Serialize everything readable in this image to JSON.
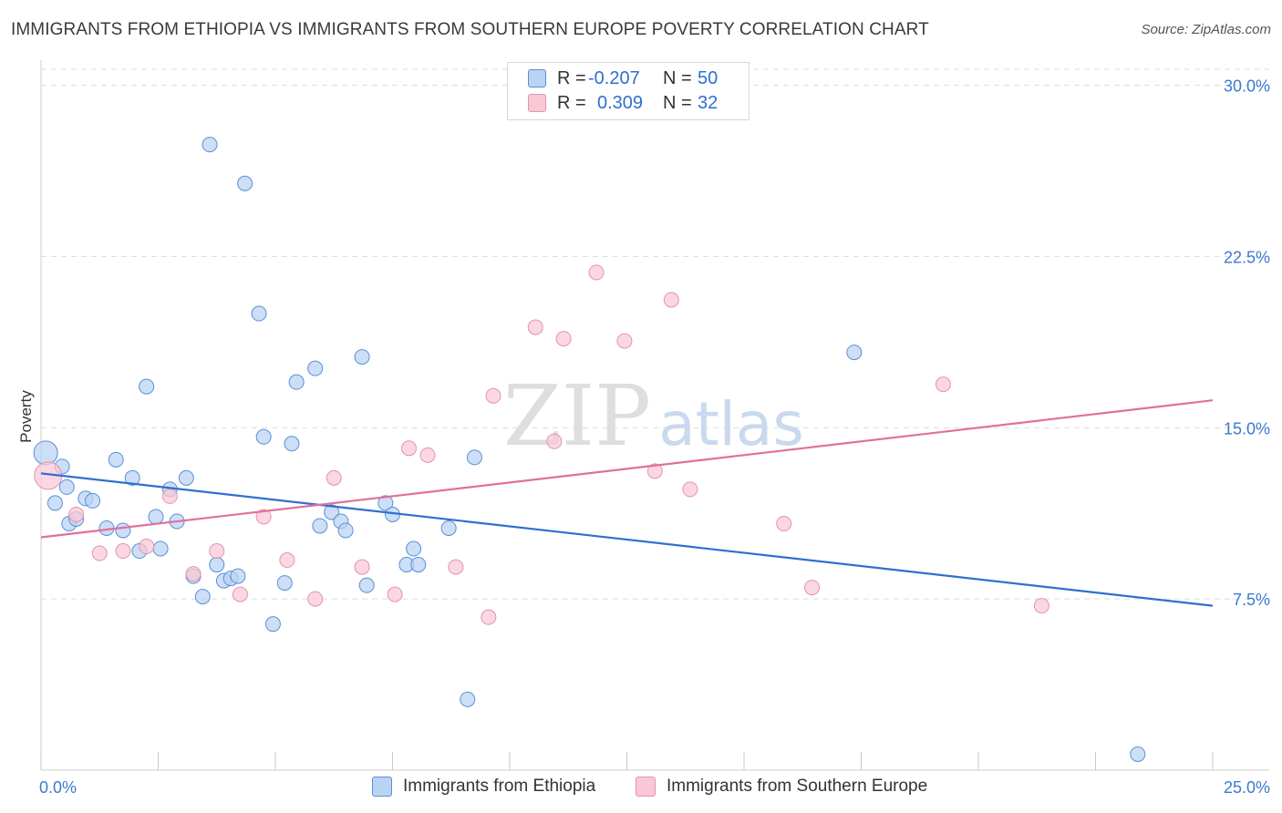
{
  "title": "IMMIGRANTS FROM ETHIOPIA VS IMMIGRANTS FROM SOUTHERN EUROPE POVERTY CORRELATION CHART",
  "source": "Source: ZipAtlas.com",
  "watermark": {
    "zip": "ZIP",
    "atlas": "atlas"
  },
  "legend_top": [
    {
      "r_label": "R =",
      "r_value": "-0.207",
      "n_label": "N =",
      "n_value": "50"
    },
    {
      "r_label": "R =",
      "r_value": "0.309",
      "n_label": "N =",
      "n_value": "32"
    }
  ],
  "legend_bottom": [
    "Immigrants from Ethiopia",
    "Immigrants from Southern Europe"
  ],
  "colors": {
    "blue_fill": "#b9d3f3",
    "blue_stroke": "#5b8fd6",
    "blue_line": "#2f6fcf",
    "pink_fill": "#f9c7d6",
    "pink_stroke": "#e493ad",
    "pink_line": "#e0709a",
    "grid": "#dcdcdc",
    "axis_text": "#3d79cf"
  },
  "chart_data": {
    "type": "scatter",
    "title": "IMMIGRANTS FROM ETHIOPIA VS IMMIGRANTS FROM SOUTHERN EUROPE POVERTY CORRELATION CHART",
    "xlabel": "",
    "ylabel": "Poverty",
    "xlim": [
      0,
      25
    ],
    "ylim": [
      0,
      30.7
    ],
    "x_tick_labels": [
      {
        "value": 0,
        "label": "0.0%"
      },
      {
        "value": 25,
        "label": "25.0%"
      }
    ],
    "y_ticks": [
      {
        "value": 7.5,
        "label": "7.5%"
      },
      {
        "value": 15,
        "label": "15.0%"
      },
      {
        "value": 22.5,
        "label": "22.5%"
      },
      {
        "value": 30,
        "label": "30.0%"
      }
    ],
    "series": [
      {
        "name": "Immigrants from Ethiopia",
        "color": "#5b8fd6",
        "points": [
          [
            0.1,
            13.9
          ],
          [
            0.3,
            11.7
          ],
          [
            0.45,
            13.3
          ],
          [
            0.55,
            12.4
          ],
          [
            0.6,
            10.8
          ],
          [
            0.75,
            11.0
          ],
          [
            0.95,
            11.9
          ],
          [
            1.1,
            11.8
          ],
          [
            1.4,
            10.6
          ],
          [
            1.6,
            13.6
          ],
          [
            1.75,
            10.5
          ],
          [
            1.95,
            12.8
          ],
          [
            2.1,
            9.6
          ],
          [
            2.25,
            16.8
          ],
          [
            2.45,
            11.1
          ],
          [
            2.55,
            9.7
          ],
          [
            2.75,
            12.3
          ],
          [
            2.9,
            10.9
          ],
          [
            3.1,
            12.8
          ],
          [
            3.25,
            8.5
          ],
          [
            3.45,
            7.6
          ],
          [
            3.6,
            27.4
          ],
          [
            3.75,
            9.0
          ],
          [
            3.9,
            8.3
          ],
          [
            4.05,
            8.4
          ],
          [
            4.2,
            8.5
          ],
          [
            4.35,
            25.7
          ],
          [
            4.65,
            20.0
          ],
          [
            4.75,
            14.6
          ],
          [
            4.95,
            6.4
          ],
          [
            5.2,
            8.2
          ],
          [
            5.35,
            14.3
          ],
          [
            5.45,
            17.0
          ],
          [
            5.85,
            17.6
          ],
          [
            5.95,
            10.7
          ],
          [
            6.2,
            11.3
          ],
          [
            6.4,
            10.9
          ],
          [
            6.5,
            10.5
          ],
          [
            6.85,
            18.1
          ],
          [
            6.95,
            8.1
          ],
          [
            7.35,
            11.7
          ],
          [
            7.5,
            11.2
          ],
          [
            7.8,
            9.0
          ],
          [
            7.95,
            9.7
          ],
          [
            8.05,
            9.0
          ],
          [
            8.7,
            10.6
          ],
          [
            9.1,
            3.1
          ],
          [
            9.25,
            13.7
          ],
          [
            17.35,
            18.3
          ],
          [
            23.4,
            0.7
          ]
        ],
        "trend": [
          [
            0,
            13.0
          ],
          [
            25,
            7.2
          ]
        ]
      },
      {
        "name": "Immigrants from Southern Europe",
        "color": "#e493ad",
        "points": [
          [
            0.15,
            12.9
          ],
          [
            0.75,
            11.2
          ],
          [
            1.25,
            9.5
          ],
          [
            1.75,
            9.6
          ],
          [
            2.25,
            9.8
          ],
          [
            2.75,
            12.0
          ],
          [
            3.25,
            8.6
          ],
          [
            3.75,
            9.6
          ],
          [
            4.25,
            7.7
          ],
          [
            4.75,
            11.1
          ],
          [
            5.25,
            9.2
          ],
          [
            5.85,
            7.5
          ],
          [
            6.25,
            12.8
          ],
          [
            6.85,
            8.9
          ],
          [
            7.55,
            7.7
          ],
          [
            7.85,
            14.1
          ],
          [
            8.25,
            13.8
          ],
          [
            8.85,
            8.9
          ],
          [
            9.55,
            6.7
          ],
          [
            9.65,
            16.4
          ],
          [
            10.55,
            19.4
          ],
          [
            10.95,
            14.4
          ],
          [
            11.15,
            18.9
          ],
          [
            11.85,
            21.8
          ],
          [
            12.45,
            18.8
          ],
          [
            13.1,
            13.1
          ],
          [
            13.45,
            20.6
          ],
          [
            13.85,
            12.3
          ],
          [
            15.85,
            10.8
          ],
          [
            16.45,
            8.0
          ],
          [
            19.25,
            16.9
          ],
          [
            21.35,
            7.2
          ]
        ],
        "trend": [
          [
            0,
            10.2
          ],
          [
            25,
            16.2
          ]
        ]
      }
    ]
  }
}
